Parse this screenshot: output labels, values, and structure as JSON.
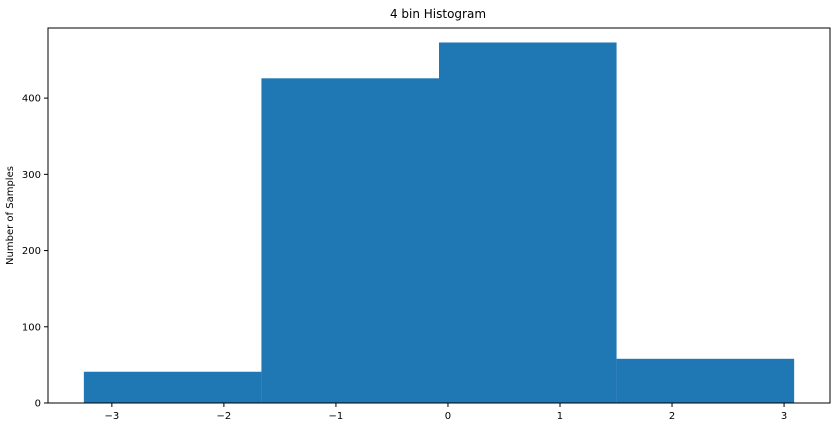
{
  "chart_data": {
    "type": "bar",
    "title": "4 bin Histogram",
    "xlabel": "",
    "ylabel": "Number of Samples",
    "bins": [
      {
        "x_start": -3.25,
        "x_end": -1.665,
        "count": 41
      },
      {
        "x_start": -1.665,
        "x_end": -0.08,
        "count": 426
      },
      {
        "x_start": -0.08,
        "x_end": 1.505,
        "count": 473
      },
      {
        "x_start": 1.505,
        "x_end": 3.09,
        "count": 58
      }
    ],
    "xlim": [
      -3.57,
      3.41
    ],
    "ylim": [
      0,
      492
    ],
    "xticks": [
      -3,
      -2,
      -1,
      0,
      1,
      2,
      3
    ],
    "xtick_labels": [
      "−3",
      "−2",
      "−1",
      "0",
      "1",
      "2",
      "3"
    ],
    "yticks": [
      0,
      100,
      200,
      300,
      400
    ],
    "ytick_labels": [
      "0",
      "100",
      "200",
      "300",
      "400"
    ],
    "bar_color": "#1f77b4",
    "grid": false,
    "legend": "none"
  }
}
